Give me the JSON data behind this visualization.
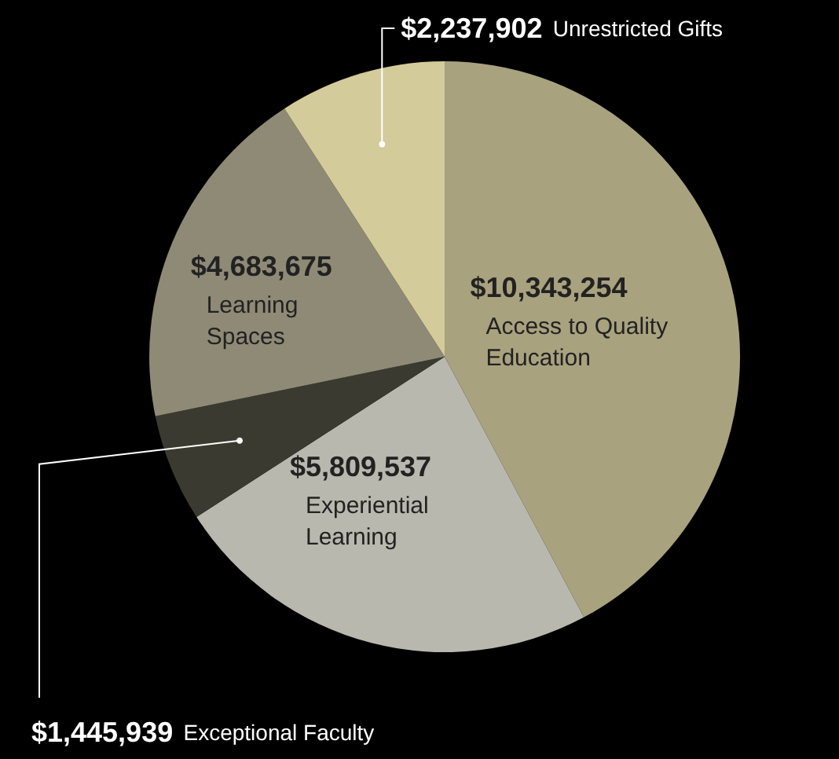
{
  "chart_data": {
    "type": "pie",
    "categories": [
      "Access to Quality Education",
      "Experiential Learning",
      "Exceptional Faculty",
      "Learning Spaces",
      "Unrestricted Gifts"
    ],
    "values": [
      10343254,
      5809537,
      1445939,
      4683675,
      2237902
    ],
    "value_labels": [
      "$10,343,254",
      "$5,809,537",
      "$1,445,939",
      "$4,683,675",
      "$2,237,902"
    ],
    "colors": [
      "#a9a27e",
      "#b8b8ae",
      "#3a3a30",
      "#8e8a76",
      "#d4cb9a"
    ],
    "legend": false
  }
}
